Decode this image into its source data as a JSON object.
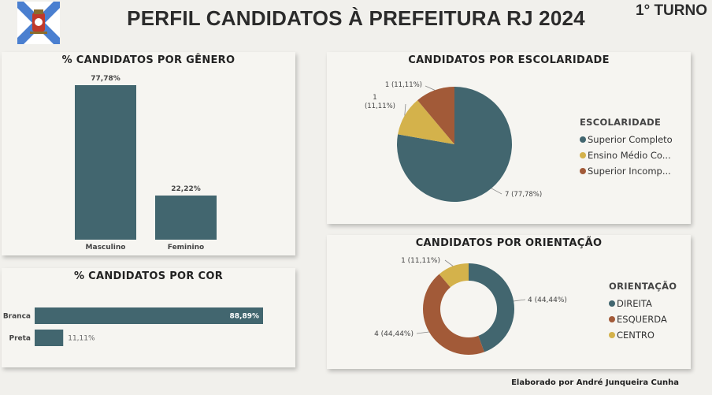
{
  "header": {
    "title": "PERFIL CANDIDATOS À PREFEITURA RJ 2024",
    "turno": "1° TURNO"
  },
  "footer": "Elaborado por André Junqueira Cunha",
  "colors": {
    "teal": "#42666f",
    "mustard": "#d4b24b",
    "brown": "#a25a38",
    "flag_blue": "#4a7fd0"
  },
  "chart_data": [
    {
      "type": "bar",
      "title": "% CANDIDATOS POR GÊNERO",
      "categories": [
        "Masculino",
        "Feminino"
      ],
      "values": [
        77.78,
        22.22
      ],
      "value_labels": [
        "77,78%",
        "22,22%"
      ],
      "ylim": [
        0,
        77.78
      ]
    },
    {
      "type": "bar",
      "orientation": "horizontal",
      "title": "% CANDIDATOS POR COR",
      "categories": [
        "Branca",
        "Preta"
      ],
      "values": [
        88.89,
        11.11
      ],
      "value_labels": [
        "88,89%",
        "11,11%"
      ],
      "xlim": [
        0,
        88.89
      ]
    },
    {
      "type": "pie",
      "title": "CANDIDATOS POR ESCOLARIDADE",
      "legend_title": "ESCOLARIDADE",
      "legend_position": "right",
      "labels": [
        "Superior Completo",
        "Ensino Médio Co...",
        "Superior Incomp..."
      ],
      "values": [
        7,
        1,
        1
      ],
      "data_labels": [
        "7 (77,78%)",
        "1 (11,11%)",
        "1 (11,11%)"
      ],
      "colors": [
        "#42666f",
        "#d4b24b",
        "#a25a38"
      ]
    },
    {
      "type": "pie",
      "donut": true,
      "title": "CANDIDATOS POR ORIENTAÇÃO",
      "legend_title": "ORIENTAÇÃO",
      "legend_position": "right",
      "labels": [
        "DIREITA",
        "ESQUERDA",
        "CENTRO"
      ],
      "values": [
        4,
        4,
        1
      ],
      "data_labels": [
        "4 (44,44%)",
        "4 (44,44%)",
        "1 (11,11%)"
      ],
      "colors": [
        "#42666f",
        "#a25a38",
        "#d4b24b"
      ]
    }
  ]
}
